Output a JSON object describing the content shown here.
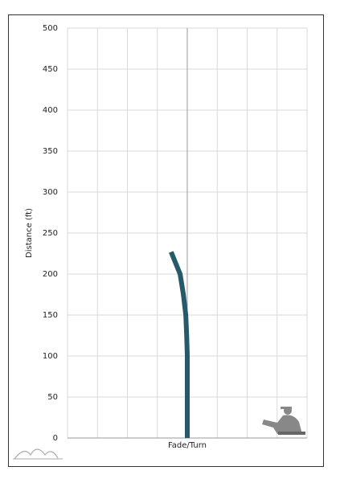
{
  "chart_data": {
    "type": "line",
    "x_label": "Fade/Turn",
    "y_label": "Distance (ft)",
    "series": [
      {
        "color": "#245a69",
        "x": [
          0,
          0,
          0,
          -0.02,
          -0.05,
          -0.13,
          -0.24,
          -0.54
        ],
        "values": [
          0,
          50,
          100,
          125,
          150,
          175,
          200,
          227
        ]
      }
    ],
    "xlim": [
      -4,
      4
    ],
    "xticks": [
      -4,
      -3,
      -2,
      -1,
      0,
      1,
      2,
      3,
      4
    ],
    "ylim": [
      0,
      500
    ],
    "yticks": [
      0,
      50,
      100,
      150,
      200,
      250,
      300,
      350,
      400,
      450,
      500
    ],
    "grid": true
  }
}
